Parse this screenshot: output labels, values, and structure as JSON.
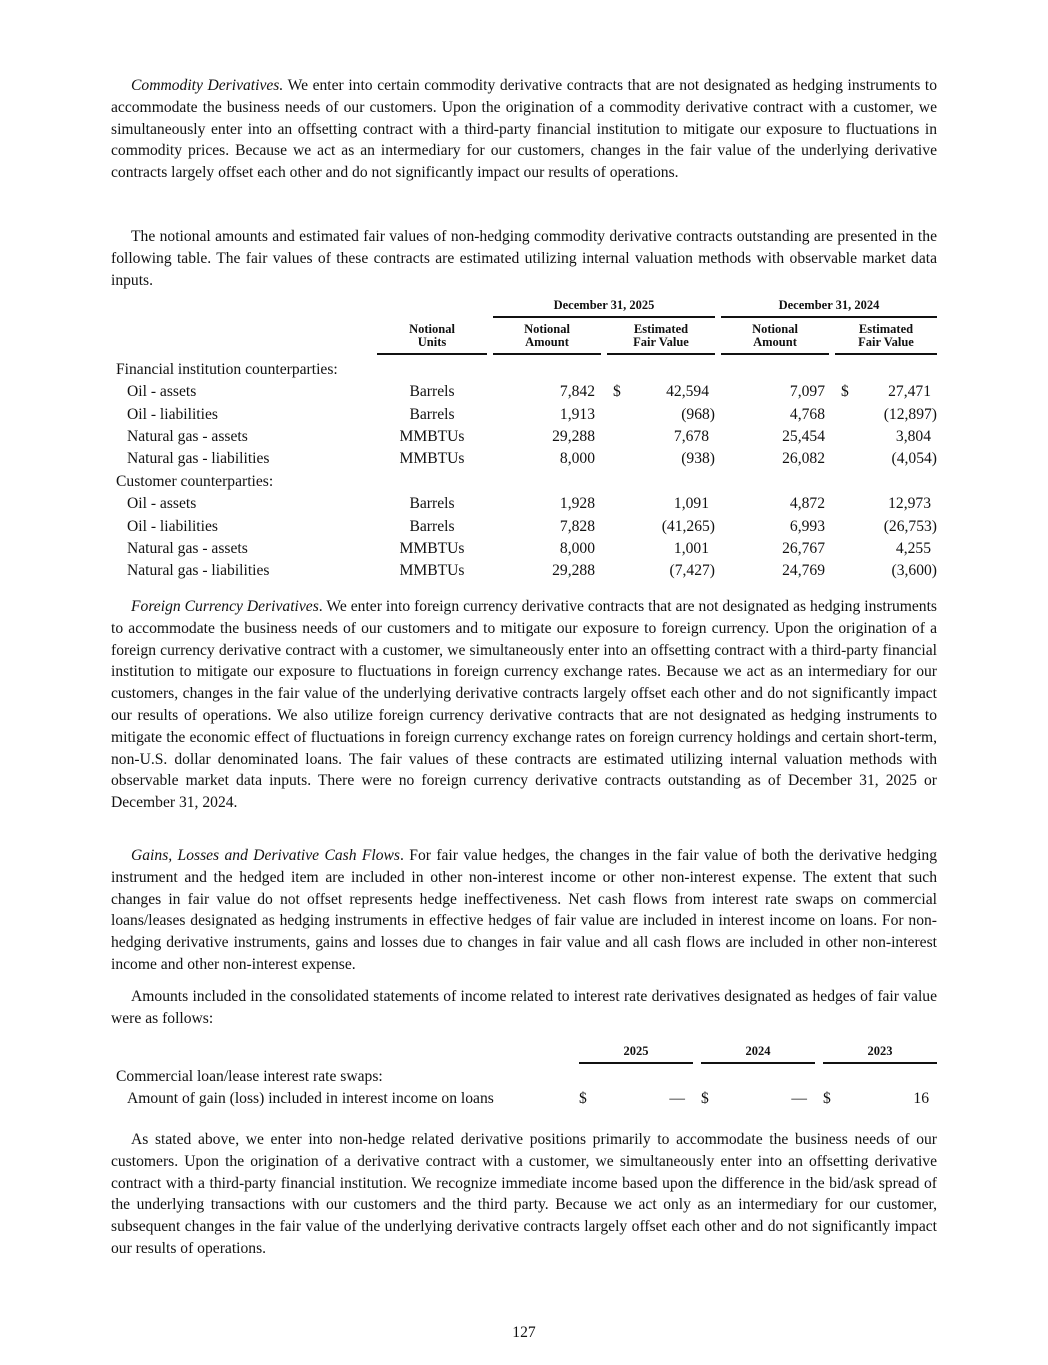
{
  "paragraphs": {
    "commodity": {
      "lead": "Commodity Derivatives.",
      "text": " We enter into certain commodity derivative contracts that are not designated as hedging instruments to accommodate the business needs of our customers. Upon the origination of a commodity derivative contract with a customer, we simultaneously enter into an offsetting contract with a third-party financial institution to mitigate our exposure to fluctuations in commodity prices. Because we act as an intermediary for our customers, changes in the fair value of the underlying derivative contracts largely offset each other and do not significantly impact our results of operations."
    },
    "notional": "The notional amounts and estimated fair values of non-hedging commodity derivative contracts outstanding are presented in the following table. The fair values of these contracts are estimated utilizing internal valuation methods with observable market data inputs.",
    "foreign": {
      "lead": "Foreign Currency Derivatives",
      "text": ". We enter into foreign currency derivative contracts that are not designated as hedging instruments to accommodate the business needs of our customers and to mitigate our exposure to foreign currency. Upon the origination of a foreign currency derivative contract with a customer, we simultaneously enter into an offsetting contract with a third-party financial institution to mitigate our exposure to fluctuations in foreign currency exchange rates. Because we act as an intermediary for our customers, changes in the fair value of the underlying derivative contracts largely offset each other and do not significantly impact our results of operations. We also utilize foreign currency derivative contracts that are not designated as hedging instruments to mitigate the economic effect of fluctuations in foreign currency exchange rates on foreign currency holdings and certain short-term, non-U.S. dollar denominated loans. The fair values of these contracts are estimated utilizing internal valuation methods with observable market data inputs. There were no foreign currency derivative contracts outstanding as of December 31, 2025 or December 31, 2024."
    },
    "gains": {
      "lead": "Gains, Losses and Derivative Cash Flows",
      "text": ". For fair value hedges, the changes in the fair value of both the derivative hedging instrument and the hedged item are included in other non-interest income or other non-interest expense. The extent that such changes in fair value do not offset represents hedge ineffectiveness. Net cash flows from interest rate swaps on commercial loans/leases designated as hedging instruments in effective hedges of fair value are included in interest income on loans. For non-hedging derivative instruments, gains and losses due to changes in fair value and all cash flows are included in other non-interest income and other non-interest expense."
    },
    "amounts": "Amounts included in the consolidated statements of income related to interest rate derivatives designated as hedges of fair value were as follows:",
    "stated": "As stated above, we enter into non-hedge related derivative positions primarily to accommodate the business needs of our customers. Upon the origination of a derivative contract with a customer, we simultaneously enter into an offsetting derivative contract with a third-party financial institution. We recognize immediate income based upon the difference in the bid/ask spread of the underlying transactions with our customers and the third party. Because we act only as an intermediary for our customer, subsequent changes in the fair value of the underlying derivative contracts largely offset each other and do not significantly impact our results of operations."
  },
  "commodity_table": {
    "period_headers": [
      "December 31, 2025",
      "December 31, 2024"
    ],
    "column_headers": {
      "units": [
        "Notional",
        "Units"
      ],
      "amount": [
        "Notional",
        "Amount"
      ],
      "fair_value": [
        "Estimated",
        "Fair Value"
      ]
    },
    "currency": "$",
    "groups": [
      {
        "label": "Financial institution counterparties:",
        "rows": [
          {
            "label": "Oil - assets",
            "units": "Barrels",
            "amt2025": "7,842",
            "fv2025": "42,594",
            "amt2024": "7,097",
            "fv2024": "27,471"
          },
          {
            "label": "Oil - liabilities",
            "units": "Barrels",
            "amt2025": "1,913",
            "fv2025": "(968)",
            "amt2024": "4,768",
            "fv2024": "(12,897)"
          },
          {
            "label": "Natural gas - assets",
            "units": "MMBTUs",
            "amt2025": "29,288",
            "fv2025": "7,678",
            "amt2024": "25,454",
            "fv2024": "3,804"
          },
          {
            "label": "Natural gas - liabilities",
            "units": "MMBTUs",
            "amt2025": "8,000",
            "fv2025": "(938)",
            "amt2024": "26,082",
            "fv2024": "(4,054)"
          }
        ]
      },
      {
        "label": "Customer counterparties:",
        "rows": [
          {
            "label": "Oil - assets",
            "units": "Barrels",
            "amt2025": "1,928",
            "fv2025": "1,091",
            "amt2024": "4,872",
            "fv2024": "12,973"
          },
          {
            "label": "Oil - liabilities",
            "units": "Barrels",
            "amt2025": "7,828",
            "fv2025": "(41,265)",
            "amt2024": "6,993",
            "fv2024": "(26,753)"
          },
          {
            "label": "Natural gas - assets",
            "units": "MMBTUs",
            "amt2025": "8,000",
            "fv2025": "1,001",
            "amt2024": "26,767",
            "fv2024": "4,255"
          },
          {
            "label": "Natural gas - liabilities",
            "units": "MMBTUs",
            "amt2025": "29,288",
            "fv2025": "(7,427)",
            "amt2024": "24,769",
            "fv2024": "(3,600)"
          }
        ]
      }
    ]
  },
  "hedge_table": {
    "years": [
      "2025",
      "2024",
      "2023"
    ],
    "group_label": "Commercial loan/lease interest rate swaps:",
    "row_label": "Amount of gain (loss) included in interest income on loans",
    "currency": "$",
    "values": [
      "—",
      "—",
      "16"
    ]
  },
  "page_number": "127"
}
